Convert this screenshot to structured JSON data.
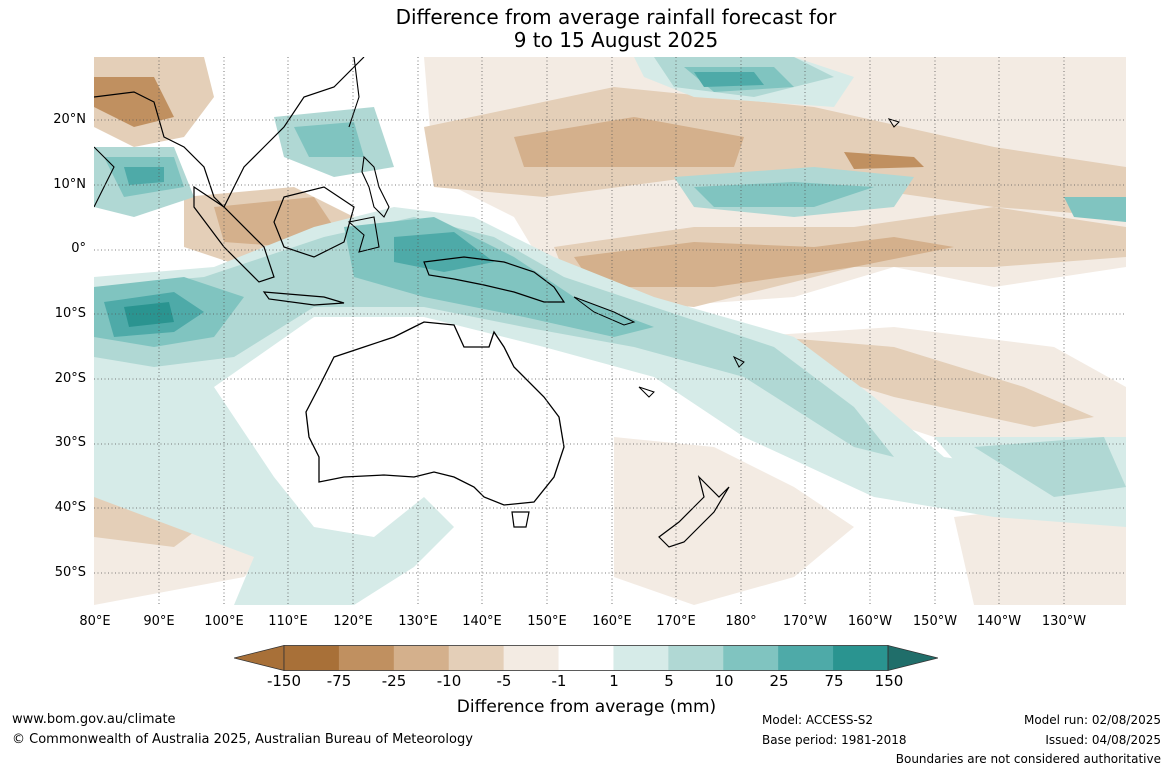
{
  "title_line1": "Difference from average rainfall forecast for",
  "title_line2": "9 to 15 August 2025",
  "lat_labels": [
    "20°N",
    "10°N",
    "0°",
    "10°S",
    "20°S",
    "30°S",
    "40°S",
    "50°S"
  ],
  "lon_labels": [
    "80°E",
    "90°E",
    "100°E",
    "110°E",
    "120°E",
    "130°E",
    "140°E",
    "150°E",
    "160°E",
    "170°E",
    "180°",
    "170°W",
    "160°W",
    "150°W",
    "140°W",
    "130°W"
  ],
  "colorbar": {
    "ticks": [
      "-150",
      "-75",
      "-25",
      "-10",
      "-5",
      "-1",
      "1",
      "5",
      "10",
      "25",
      "75",
      "150"
    ],
    "colors": [
      "#a87038",
      "#c09060",
      "#d4b08c",
      "#e4cfb8",
      "#f3ebe3",
      "#ffffff",
      "#d6ebe8",
      "#b0d8d4",
      "#80c4c0",
      "#4eaaa8",
      "#2a9490",
      "#206e6a"
    ],
    "label": "Difference from average (mm)"
  },
  "footer": {
    "website": "www.bom.gov.au/climate",
    "copyright": "© Commonwealth of Australia 2025, Australian Bureau of Meteorology",
    "model": "Model: ACCESS-S2",
    "base_period": "Base period: 1981-2018",
    "model_run": "Model run: 02/08/2025",
    "issued": "Issued: 04/08/2025",
    "boundaries_note": "Boundaries are not considered authoritative"
  }
}
